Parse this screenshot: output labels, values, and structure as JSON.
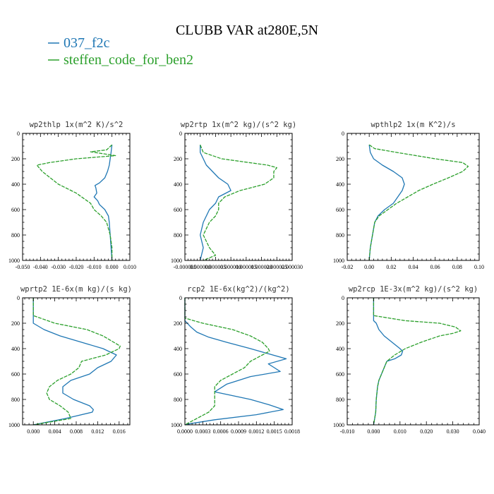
{
  "figure": {
    "title": "CLUBB VAR at280E,5N",
    "legend": [
      {
        "label": "037_f2c",
        "color": "#1f77b4",
        "dashed": false
      },
      {
        "label": "steffen_code_for_ben2",
        "color": "#2ca02c",
        "dashed": true
      }
    ]
  },
  "chart_data": [
    {
      "type": "line",
      "title": "wp2thlp   1x(m^2 K)/s^2",
      "xlim": [
        -0.05,
        0.01
      ],
      "ylim": [
        1000,
        0
      ],
      "xticks": [
        -0.05,
        -0.04,
        -0.03,
        -0.02,
        -0.01,
        0.0,
        0.01
      ],
      "xtick_labels": [
        "-0.050",
        "-0.040",
        "-0.030",
        "-0.020",
        "-0.010",
        "0.000",
        "0.010"
      ],
      "yticks": [
        0,
        200,
        400,
        600,
        800,
        1000
      ],
      "ytick_labels": [
        "0",
        "200",
        "400",
        "600",
        "800",
        "1000"
      ],
      "series": [
        {
          "name": "037_f2c",
          "y": [
            90,
            150,
            200,
            250,
            300,
            350,
            390,
            410,
            430,
            470,
            500,
            530,
            560,
            600,
            650,
            700,
            800,
            900,
            1000
          ],
          "x": [
            0.0,
            -0.0005,
            -0.001,
            -0.0015,
            -0.0025,
            -0.004,
            -0.007,
            -0.0095,
            -0.009,
            -0.0085,
            -0.01,
            -0.008,
            -0.007,
            -0.004,
            -0.002,
            -0.0015,
            -0.001,
            -0.0005,
            0.0
          ]
        },
        {
          "name": "steffen_code_for_ben2",
          "y": [
            90,
            130,
            145,
            160,
            175,
            200,
            230,
            250,
            300,
            400,
            470,
            520,
            550,
            600,
            650,
            700,
            800,
            900,
            1000
          ],
          "x": [
            0.0,
            -0.003,
            -0.012,
            -0.005,
            0.002,
            -0.02,
            -0.035,
            -0.042,
            -0.039,
            -0.03,
            -0.02,
            -0.015,
            -0.012,
            -0.01,
            -0.006,
            -0.003,
            -0.001,
            0.0,
            0.0
          ]
        }
      ]
    },
    {
      "type": "line",
      "title": "wp2rtp   1x(m^2 kg)/(s^2 kg)",
      "xlim": [
        -5e-06,
        3e-05
      ],
      "ylim": [
        1000,
        0
      ],
      "xticks": [
        -5e-06,
        0.0,
        5e-06,
        1e-05,
        1.5e-05,
        2e-05,
        2.5e-05,
        3e-05
      ],
      "xtick_labels": [
        "-0.000005",
        "0.000000",
        "0.000005",
        "0.000010",
        "0.000015",
        "0.000020",
        "0.000025",
        "0.000030"
      ],
      "yticks": [
        0,
        200,
        400,
        600,
        800,
        1000
      ],
      "ytick_labels": [
        "0",
        "200",
        "400",
        "600",
        "800",
        "1000"
      ],
      "series": [
        {
          "name": "037_f2c",
          "y": [
            90,
            150,
            200,
            250,
            300,
            350,
            400,
            450,
            500,
            550,
            600,
            700,
            800,
            900,
            1000
          ],
          "x": [
            0.0,
            0.0,
            1e-06,
            2e-06,
            4e-06,
            6e-06,
            9e-06,
            1e-05,
            6e-06,
            5e-06,
            3e-06,
            1e-06,
            0.0,
            1e-06,
            0.0
          ]
        },
        {
          "name": "steffen_code_for_ben2",
          "y": [
            90,
            150,
            200,
            250,
            270,
            300,
            350,
            400,
            450,
            500,
            550,
            600,
            650,
            700,
            800,
            900,
            960,
            1000
          ],
          "x": [
            0.0,
            1e-06,
            7e-06,
            2.2e-05,
            2.5e-05,
            2.4e-05,
            2.4e-05,
            2.1e-05,
            1.3e-05,
            8e-06,
            6e-06,
            6e-06,
            5e-06,
            3e-06,
            1e-06,
            3e-06,
            5e-06,
            1e-06
          ]
        }
      ]
    },
    {
      "type": "line",
      "title": "wpthlp2   1x(m K^2)/s",
      "xlim": [
        -0.02,
        0.1
      ],
      "ylim": [
        1000,
        0
      ],
      "xticks": [
        -0.02,
        0.0,
        0.02,
        0.04,
        0.06,
        0.08,
        0.1
      ],
      "xtick_labels": [
        "-0.02",
        "0.00",
        "0.02",
        "0.04",
        "0.06",
        "0.08",
        "0.10"
      ],
      "yticks": [
        0,
        200,
        400,
        600,
        800,
        1000
      ],
      "ytick_labels": [
        "0",
        "200",
        "400",
        "600",
        "800",
        "1000"
      ],
      "series": [
        {
          "name": "037_f2c",
          "y": [
            90,
            150,
            200,
            250,
            300,
            350,
            400,
            450,
            500,
            550,
            600,
            650,
            700,
            800,
            900,
            1000
          ],
          "x": [
            0.0,
            0.001,
            0.004,
            0.012,
            0.022,
            0.03,
            0.032,
            0.03,
            0.026,
            0.022,
            0.014,
            0.008,
            0.005,
            0.003,
            0.001,
            0.0
          ]
        },
        {
          "name": "steffen_code_for_ben2",
          "y": [
            90,
            120,
            150,
            200,
            230,
            260,
            300,
            350,
            400,
            450,
            500,
            550,
            600,
            650,
            700,
            800,
            900,
            1000
          ],
          "x": [
            0.0,
            0.005,
            0.025,
            0.06,
            0.085,
            0.09,
            0.085,
            0.072,
            0.058,
            0.045,
            0.035,
            0.025,
            0.017,
            0.009,
            0.005,
            0.003,
            0.001,
            0.0
          ]
        }
      ]
    },
    {
      "type": "line",
      "title": "wprtp2   1E-6x(m kg)/(s kg)",
      "xlim": [
        -0.002,
        0.018
      ],
      "ylim": [
        1000,
        0
      ],
      "xticks": [
        0.0,
        0.004,
        0.008,
        0.012,
        0.016
      ],
      "xtick_labels": [
        "0.000",
        "0.004",
        "0.008",
        "0.012",
        "0.016"
      ],
      "yticks": [
        0,
        200,
        400,
        600,
        800,
        1000
      ],
      "ytick_labels": [
        "0",
        "200",
        "400",
        "600",
        "800",
        "1000"
      ],
      "series": [
        {
          "name": "037_f2c",
          "y": [
            0,
            200,
            250,
            300,
            350,
            400,
            450,
            500,
            550,
            600,
            650,
            700,
            750,
            800,
            850,
            880,
            900,
            950,
            1000
          ],
          "x": [
            0.0,
            0.0,
            0.002,
            0.005,
            0.009,
            0.013,
            0.0155,
            0.0145,
            0.012,
            0.0105,
            0.007,
            0.0055,
            0.0055,
            0.0075,
            0.0105,
            0.0112,
            0.011,
            0.006,
            0.0
          ]
        },
        {
          "name": "steffen_code_for_ben2",
          "y": [
            0,
            140,
            200,
            250,
            300,
            350,
            380,
            400,
            450,
            500,
            550,
            600,
            650,
            700,
            750,
            800,
            850,
            900,
            950,
            1000
          ],
          "x": [
            0.0,
            0.0,
            0.004,
            0.01,
            0.013,
            0.015,
            0.0162,
            0.016,
            0.0135,
            0.009,
            0.0085,
            0.007,
            0.0045,
            0.003,
            0.0025,
            0.003,
            0.005,
            0.0065,
            0.007,
            0.0
          ]
        }
      ]
    },
    {
      "type": "line",
      "title": "rcp2   1E-6x(kg^2)/(kg^2)",
      "xlim": [
        0.0,
        0.0018
      ],
      "ylim": [
        1000,
        0
      ],
      "xticks": [
        0.0,
        0.0003,
        0.0006,
        0.0009,
        0.0012,
        0.0015,
        0.0018
      ],
      "xtick_labels": [
        "0.0000",
        "0.0003",
        "0.0006",
        "0.0009",
        "0.0012",
        "0.0015",
        "0.0018"
      ],
      "yticks": [
        0,
        200,
        400,
        600,
        800,
        1000
      ],
      "ytick_labels": [
        "0",
        "200",
        "400",
        "600",
        "800",
        "1000"
      ],
      "series": [
        {
          "name": "037_f2c",
          "y": [
            0,
            180,
            230,
            270,
            310,
            350,
            400,
            440,
            480,
            520,
            550,
            580,
            620,
            680,
            740,
            800,
            840,
            880,
            920,
            960,
            990,
            1000
          ],
          "x": [
            0.0,
            0.0,
            0.0001,
            0.0002,
            0.0004,
            0.0007,
            0.0011,
            0.0014,
            0.0017,
            0.0014,
            0.0015,
            0.0016,
            0.0011,
            0.0007,
            0.0005,
            0.0011,
            0.0014,
            0.00165,
            0.0012,
            0.0005,
            0.0001,
            0.0
          ]
        },
        {
          "name": "steffen_code_for_ben2",
          "y": [
            0,
            160,
            200,
            250,
            300,
            350,
            400,
            420,
            450,
            500,
            550,
            600,
            650,
            700,
            750,
            800,
            850,
            900,
            950,
            1000
          ],
          "x": [
            0.0,
            0.0,
            0.0003,
            0.0008,
            0.0011,
            0.0013,
            0.0014,
            0.00142,
            0.0013,
            0.0011,
            0.001,
            0.0008,
            0.0006,
            0.0005,
            0.0005,
            0.0005,
            0.0005,
            0.0004,
            0.0002,
            0.0
          ]
        }
      ]
    },
    {
      "type": "line",
      "title": "wp2rcp   1E-3x(m^2 kg)/(s^2 kg)",
      "xlim": [
        -0.01,
        0.04
      ],
      "ylim": [
        1000,
        0
      ],
      "xticks": [
        -0.01,
        0.0,
        0.01,
        0.02,
        0.03,
        0.04
      ],
      "xtick_labels": [
        "-0.010",
        "0.000",
        "0.010",
        "0.020",
        "0.030",
        "0.040"
      ],
      "yticks": [
        0,
        200,
        400,
        600,
        800,
        1000
      ],
      "ytick_labels": [
        "0",
        "200",
        "400",
        "600",
        "800",
        "1000"
      ],
      "series": [
        {
          "name": "037_f2c",
          "y": [
            0,
            180,
            200,
            250,
            300,
            350,
            400,
            420,
            450,
            480,
            500,
            550,
            600,
            650,
            700,
            800,
            900,
            1000
          ],
          "x": [
            0.0,
            0.0,
            0.001,
            0.002,
            0.004,
            0.007,
            0.01,
            0.011,
            0.0105,
            0.008,
            0.005,
            0.004,
            0.003,
            0.002,
            0.0015,
            0.001,
            0.0008,
            0.0
          ]
        },
        {
          "name": "steffen_code_for_ben2",
          "y": [
            0,
            140,
            180,
            200,
            230,
            260,
            280,
            300,
            350,
            400,
            450,
            500,
            550,
            600,
            650,
            700,
            800,
            900,
            1000
          ],
          "x": [
            0.0,
            0.0,
            0.012,
            0.025,
            0.031,
            0.033,
            0.03,
            0.025,
            0.018,
            0.012,
            0.008,
            0.005,
            0.004,
            0.003,
            0.002,
            0.0015,
            0.001,
            0.0008,
            0.0
          ]
        }
      ]
    }
  ]
}
